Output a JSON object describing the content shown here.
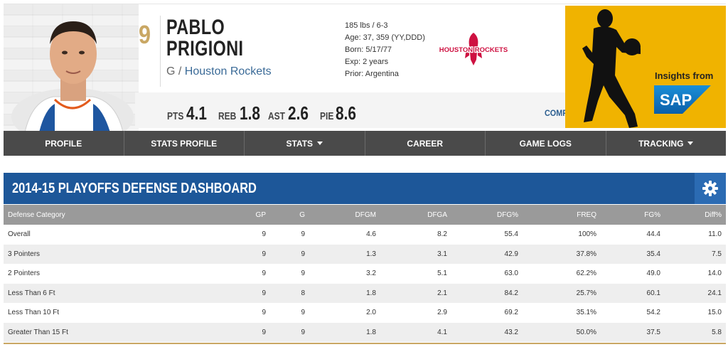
{
  "player": {
    "number": "9",
    "first_name": "PABLO",
    "last_name": "PRIGIONI",
    "position": "G",
    "separator": " / ",
    "team": "Houston Rockets",
    "bio": [
      "185 lbs / 6-3",
      "Age: 37, 359 (YY,DDD)",
      "Born: 5/17/77",
      "Exp: 2 years",
      "Prior: Argentina"
    ],
    "team_logo_text": "HOUSTON ROCKETS",
    "stats": [
      {
        "label": "PTS",
        "value": "4.1"
      },
      {
        "label": "REB",
        "value": "1.8"
      },
      {
        "label": "AST",
        "value": "2.6"
      },
      {
        "label": "PIE",
        "value": "8.6"
      }
    ],
    "compare_label": "COMPARE PLAYER"
  },
  "sponsor": {
    "insights": "Insights from",
    "logo_text": "SAP"
  },
  "nav": [
    {
      "label": "PROFILE",
      "dropdown": false
    },
    {
      "label": "STATS PROFILE",
      "dropdown": false
    },
    {
      "label": "STATS",
      "dropdown": true
    },
    {
      "label": "CAREER",
      "dropdown": false
    },
    {
      "label": "GAME LOGS",
      "dropdown": false
    },
    {
      "label": "TRACKING",
      "dropdown": true
    }
  ],
  "dashboard": {
    "title": "2014-15 PLAYOFFS DEFENSE DASHBOARD",
    "columns": [
      "Defense Category",
      "GP",
      "G",
      "DFGM",
      "DFGA",
      "DFG%",
      "FREQ",
      "FG%",
      "Diff%"
    ],
    "rows": [
      [
        "Overall",
        "9",
        "9",
        "4.6",
        "8.2",
        "55.4",
        "100%",
        "44.4",
        "11.0"
      ],
      [
        "3 Pointers",
        "9",
        "9",
        "1.3",
        "3.1",
        "42.9",
        "37.8%",
        "35.4",
        "7.5"
      ],
      [
        "2 Pointers",
        "9",
        "9",
        "3.2",
        "5.1",
        "63.0",
        "62.2%",
        "49.0",
        "14.0"
      ],
      [
        "Less Than 6 Ft",
        "9",
        "8",
        "1.8",
        "2.1",
        "84.2",
        "25.7%",
        "60.1",
        "24.1"
      ],
      [
        "Less Than 10 Ft",
        "9",
        "9",
        "2.0",
        "2.9",
        "69.2",
        "35.1%",
        "54.2",
        "15.0"
      ],
      [
        "Greater Than 15 Ft",
        "9",
        "9",
        "1.8",
        "4.1",
        "43.2",
        "50.0%",
        "37.5",
        "5.8"
      ]
    ]
  },
  "colors": {
    "dashboard_header": "#1d5799",
    "nav_bg": "#4a4a4a",
    "sap_panel": "#f0b300",
    "jersey_gold": "#c9a764",
    "rockets_red": "#ce1141"
  }
}
